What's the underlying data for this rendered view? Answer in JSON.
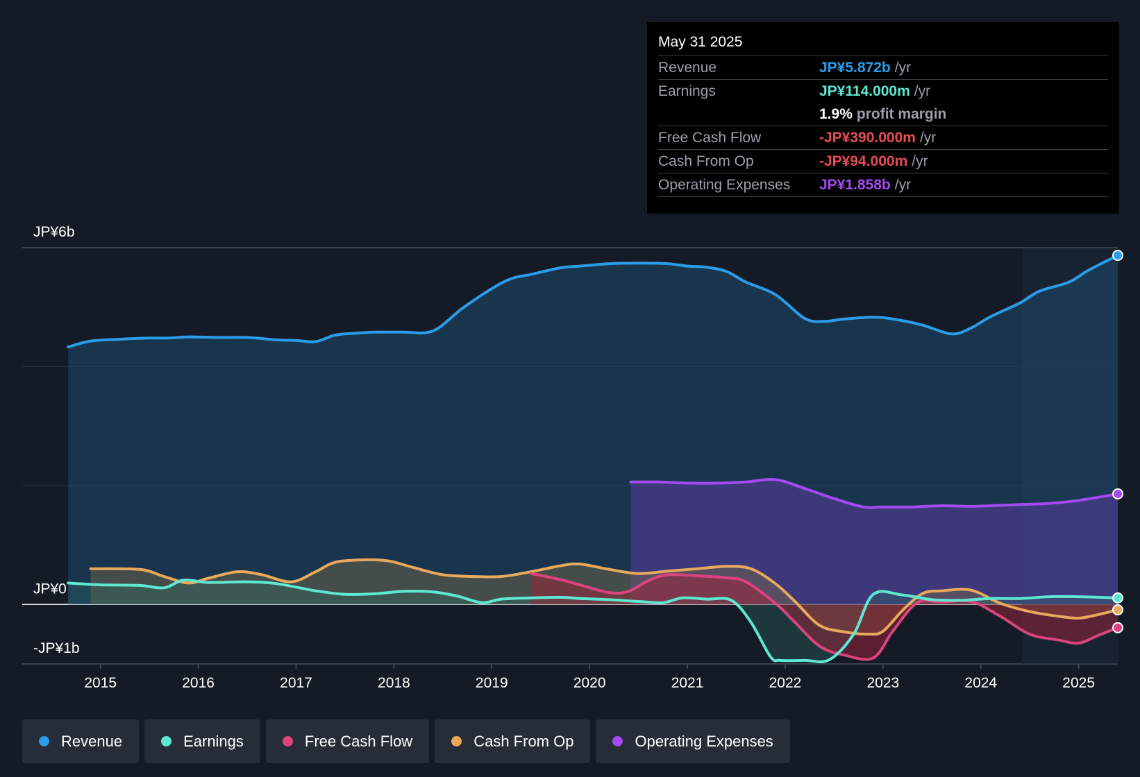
{
  "tooltip": {
    "date": "May 31 2025",
    "revenue": {
      "label": "Revenue",
      "value": "JP¥5.872b",
      "unit": "/yr",
      "color": "#2b9de8"
    },
    "earnings": {
      "label": "Earnings",
      "value": "JP¥114.000m",
      "unit": "/yr",
      "color": "#5ee8d2"
    },
    "margin": {
      "value": "1.9%",
      "text": "profit margin"
    },
    "fcf": {
      "label": "Free Cash Flow",
      "value": "-JP¥390.000m",
      "unit": "/yr",
      "color": "#e84b55"
    },
    "cfo": {
      "label": "Cash From Op",
      "value": "-JP¥94.000m",
      "unit": "/yr",
      "color": "#e84b55"
    },
    "opex": {
      "label": "Operating Expenses",
      "value": "JP¥1.858b",
      "unit": "/yr",
      "color": "#a34af0"
    }
  },
  "legend": [
    {
      "label": "Revenue",
      "color": "#2b9de8"
    },
    {
      "label": "Earnings",
      "color": "#5ee8d2"
    },
    {
      "label": "Free Cash Flow",
      "color": "#d9447f"
    },
    {
      "label": "Cash From Op",
      "color": "#e8a95c"
    },
    {
      "label": "Operating Expenses",
      "color": "#a34af0"
    }
  ],
  "chart_data": {
    "type": "line",
    "title": "",
    "y_unit": "JP¥ billions",
    "ylim": [
      -1.0,
      6.0
    ],
    "y_labels": [
      "JP¥6b",
      "JP¥0",
      "-JP¥1b"
    ],
    "x_ticks": [
      "2015",
      "2016",
      "2017",
      "2018",
      "2019",
      "2020",
      "2021",
      "2022",
      "2023",
      "2024",
      "2025"
    ],
    "xlim": [
      2014.2,
      2025.4
    ],
    "forecast_shade_from": 2024.42,
    "series": [
      {
        "name": "Revenue",
        "color": "#2b9de8",
        "x": [
          2014.67,
          2014.9,
          2015.2,
          2015.5,
          2015.7,
          2015.9,
          2016.2,
          2016.5,
          2016.8,
          2017.0,
          2017.2,
          2017.4,
          2017.6,
          2017.8,
          2018.1,
          2018.4,
          2018.7,
          2019.0,
          2019.2,
          2019.4,
          2019.7,
          2019.9,
          2020.2,
          2020.5,
          2020.8,
          2021.0,
          2021.2,
          2021.4,
          2021.6,
          2021.9,
          2022.2,
          2022.4,
          2022.6,
          2022.9,
          2023.1,
          2023.4,
          2023.7,
          2023.9,
          2024.1,
          2024.4,
          2024.6,
          2024.9,
          2025.1,
          2025.4
        ],
        "values": [
          4.33,
          4.43,
          4.46,
          4.48,
          4.48,
          4.5,
          4.49,
          4.49,
          4.45,
          4.44,
          4.42,
          4.53,
          4.56,
          4.58,
          4.58,
          4.6,
          4.98,
          5.31,
          5.48,
          5.55,
          5.66,
          5.69,
          5.73,
          5.74,
          5.73,
          5.69,
          5.67,
          5.6,
          5.42,
          5.21,
          4.81,
          4.76,
          4.8,
          4.83,
          4.8,
          4.7,
          4.55,
          4.65,
          4.84,
          5.07,
          5.27,
          5.42,
          5.62,
          5.87
        ]
      },
      {
        "name": "Earnings",
        "color": "#5ee8d2",
        "x": [
          2014.67,
          2015.0,
          2015.4,
          2015.65,
          2015.85,
          2016.1,
          2016.5,
          2016.8,
          2017.2,
          2017.5,
          2017.8,
          2018.1,
          2018.4,
          2018.65,
          2018.9,
          2019.1,
          2019.4,
          2019.7,
          2019.9,
          2020.2,
          2020.5,
          2020.75,
          2020.95,
          2021.2,
          2021.45,
          2021.65,
          2021.85,
          2021.95,
          2022.2,
          2022.45,
          2022.7,
          2022.9,
          2023.2,
          2023.5,
          2023.8,
          2024.1,
          2024.4,
          2024.7,
          2025.0,
          2025.4
        ],
        "values": [
          0.36,
          0.33,
          0.32,
          0.28,
          0.41,
          0.37,
          0.38,
          0.35,
          0.23,
          0.17,
          0.18,
          0.22,
          0.21,
          0.14,
          0.03,
          0.09,
          0.11,
          0.12,
          0.1,
          0.08,
          0.05,
          0.03,
          0.11,
          0.09,
          0.07,
          -0.3,
          -0.88,
          -0.94,
          -0.94,
          -0.93,
          -0.5,
          0.17,
          0.16,
          0.08,
          0.07,
          0.1,
          0.1,
          0.13,
          0.13,
          0.11
        ]
      },
      {
        "name": "Free Cash Flow",
        "color": "#d9447f",
        "x": [
          2019.4,
          2019.7,
          2019.9,
          2020.2,
          2020.4,
          2020.6,
          2020.8,
          2021.1,
          2021.4,
          2021.6,
          2021.9,
          2022.1,
          2022.35,
          2022.6,
          2022.9,
          2023.1,
          2023.35,
          2023.6,
          2023.9,
          2024.2,
          2024.5,
          2024.8,
          2025.0,
          2025.2,
          2025.4
        ],
        "values": [
          0.52,
          0.42,
          0.33,
          0.2,
          0.22,
          0.4,
          0.5,
          0.48,
          0.45,
          0.38,
          0.02,
          -0.3,
          -0.7,
          -0.85,
          -0.9,
          -0.45,
          0.03,
          0.04,
          0.05,
          -0.2,
          -0.5,
          -0.6,
          -0.65,
          -0.52,
          -0.39
        ]
      },
      {
        "name": "Cash From Op",
        "color": "#e8a95c",
        "x": [
          2014.9,
          2015.2,
          2015.45,
          2015.65,
          2015.9,
          2016.1,
          2016.4,
          2016.65,
          2016.95,
          2017.2,
          2017.4,
          2017.7,
          2017.95,
          2018.2,
          2018.5,
          2018.8,
          2019.1,
          2019.4,
          2019.7,
          2019.9,
          2020.2,
          2020.5,
          2020.8,
          2021.1,
          2021.4,
          2021.65,
          2021.9,
          2022.1,
          2022.35,
          2022.6,
          2022.85,
          2023.0,
          2023.2,
          2023.4,
          2023.6,
          2023.9,
          2024.2,
          2024.5,
          2024.8,
          2025.0,
          2025.2,
          2025.4
        ],
        "values": [
          0.6,
          0.6,
          0.58,
          0.47,
          0.36,
          0.44,
          0.55,
          0.5,
          0.38,
          0.55,
          0.71,
          0.75,
          0.73,
          0.62,
          0.5,
          0.47,
          0.47,
          0.55,
          0.65,
          0.68,
          0.59,
          0.52,
          0.56,
          0.6,
          0.64,
          0.6,
          0.35,
          0.05,
          -0.35,
          -0.46,
          -0.5,
          -0.45,
          -0.1,
          0.18,
          0.23,
          0.24,
          0.02,
          -0.12,
          -0.2,
          -0.23,
          -0.17,
          -0.09
        ]
      },
      {
        "name": "Operating Expenses",
        "color": "#a34af0",
        "x": [
          2020.42,
          2020.7,
          2021.0,
          2021.3,
          2021.6,
          2021.9,
          2022.2,
          2022.5,
          2022.8,
          2023.0,
          2023.3,
          2023.6,
          2023.9,
          2024.1,
          2024.4,
          2024.7,
          2025.0,
          2025.4
        ],
        "values": [
          2.06,
          2.06,
          2.04,
          2.04,
          2.06,
          2.1,
          1.95,
          1.78,
          1.64,
          1.64,
          1.64,
          1.66,
          1.65,
          1.66,
          1.68,
          1.7,
          1.75,
          1.86
        ]
      }
    ]
  }
}
